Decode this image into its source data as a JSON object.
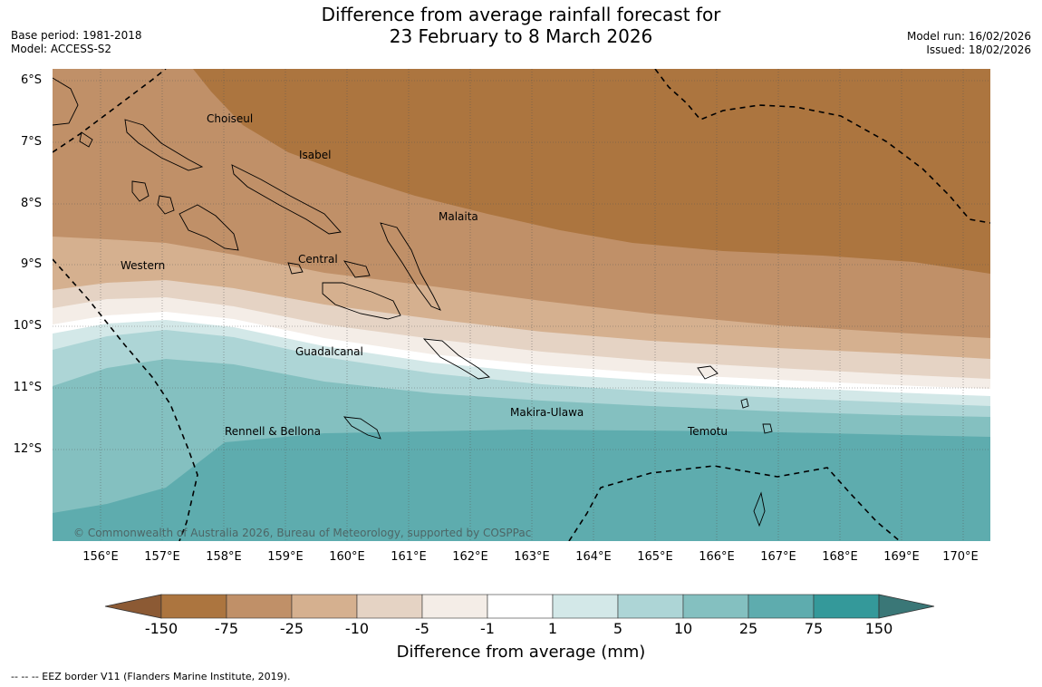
{
  "header": {
    "title_line1": "Difference from average rainfall forecast for",
    "title_line2": "23 February to 8 March 2026",
    "base_period": "Base period: 1981-2018",
    "model": "Model: ACCESS-S2",
    "model_run": "Model run: 16/02/2026",
    "issued": "Issued: 18/02/2026"
  },
  "map": {
    "lat_labels": [
      "6°S",
      "7°S",
      "8°S",
      "9°S",
      "10°S",
      "11°S",
      "12°S"
    ],
    "lon_labels": [
      "156°E",
      "157°E",
      "158°E",
      "159°E",
      "160°E",
      "161°E",
      "162°E",
      "163°E",
      "164°E",
      "165°E",
      "166°E",
      "167°E",
      "168°E",
      "169°E",
      "170°E"
    ],
    "regions": {
      "choiseul": "Choiseul",
      "isabel": "Isabel",
      "malaita": "Malaita",
      "central": "Central",
      "western": "Western",
      "guadalcanal": "Guadalcanal",
      "makira_ulawa": "Makira-Ulawa",
      "temotu": "Temotu",
      "rennell_bellona": "Rennell & Bellona"
    },
    "copyright": "© Commonwealth of Australia 2026, Bureau of Meteorology, supported by COSPPac"
  },
  "colorbar": {
    "labels": [
      "-150",
      "-75",
      "-25",
      "-10",
      "-5",
      "-1",
      "1",
      "5",
      "10",
      "25",
      "75",
      "150"
    ],
    "colors": [
      "#8c5a34",
      "#ac753f",
      "#c09068",
      "#d5b08f",
      "#e5d3c4",
      "#f4ede7",
      "#ffffff",
      "#d3e8e8",
      "#add5d6",
      "#84c0c0",
      "#5eacae",
      "#34999a",
      "#3a7777"
    ],
    "title": "Difference from average (mm)"
  },
  "footer": {
    "legend_text": "--  --  -- EEZ border V11 (Flanders Marine Institute, 2019)."
  }
}
